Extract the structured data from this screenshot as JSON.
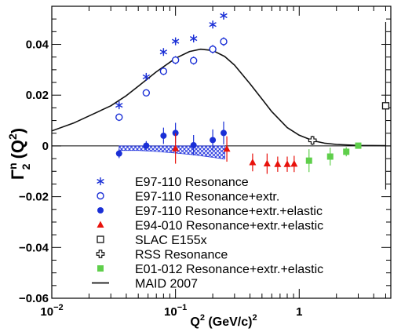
{
  "chart_data": {
    "type": "scatter",
    "xscale": "log",
    "xlim": [
      0.01,
      5.5
    ],
    "ylim": [
      -0.06,
      0.055
    ],
    "xlabel": {
      "main": "Q",
      "sup": "2",
      "rest": " (GeV/c)",
      "sup2": "2"
    },
    "ylabel": {
      "main": "Γ",
      "sup": "n",
      "sub": "2",
      "rest": " (Q",
      "sup2": "2",
      "end": ")"
    },
    "x_ticks": [
      {
        "value": 0.01,
        "label_base": "10",
        "label_exp": "−2"
      },
      {
        "value": 0.1,
        "label_base": "10",
        "label_exp": "−1"
      },
      {
        "value": 1,
        "label_base": "1",
        "label_exp": ""
      }
    ],
    "y_ticks": [
      {
        "value": 0.04,
        "label": "0.04"
      },
      {
        "value": 0.02,
        "label": "0.02"
      },
      {
        "value": 0,
        "label": "0"
      },
      {
        "value": -0.02,
        "label": "−0.02"
      },
      {
        "value": -0.04,
        "label": "−0.04"
      },
      {
        "value": -0.06,
        "label": "−0.06"
      }
    ],
    "series": [
      {
        "name": "E97-110 Resonance",
        "marker": "asterisk",
        "color": "#1a2fd6",
        "points": [
          {
            "x": 0.035,
            "y": 0.016,
            "err": 0.0012
          },
          {
            "x": 0.058,
            "y": 0.0272,
            "err": 0.0012
          },
          {
            "x": 0.08,
            "y": 0.037,
            "err": 0.0014
          },
          {
            "x": 0.1,
            "y": 0.0412,
            "err": 0.0014
          },
          {
            "x": 0.14,
            "y": 0.0423,
            "err": 0.0014
          },
          {
            "x": 0.2,
            "y": 0.0478,
            "err": 0.0015
          },
          {
            "x": 0.245,
            "y": 0.0513,
            "err": 0.0015
          }
        ]
      },
      {
        "name": "E97-110 Resonance+extr.",
        "marker": "open-circle",
        "color": "#1a2fd6",
        "points": [
          {
            "x": 0.035,
            "y": 0.0113,
            "err": 0.0015
          },
          {
            "x": 0.058,
            "y": 0.0209,
            "err": 0.0013
          },
          {
            "x": 0.08,
            "y": 0.0294,
            "err": 0.0015
          },
          {
            "x": 0.1,
            "y": 0.0338,
            "err": 0.0016
          },
          {
            "x": 0.14,
            "y": 0.0336,
            "err": 0.0016
          },
          {
            "x": 0.2,
            "y": 0.0381,
            "err": 0.0017
          },
          {
            "x": 0.245,
            "y": 0.0411,
            "err": 0.0017
          }
        ]
      },
      {
        "name": "E97-110 Resonance+extr.+elastic",
        "marker": "filled-circle",
        "color": "#1a2fd6",
        "points": [
          {
            "x": 0.035,
            "y": -0.003,
            "err": 0.0018
          },
          {
            "x": 0.058,
            "y": 0.0001,
            "err": 0.0018
          },
          {
            "x": 0.08,
            "y": 0.004,
            "err": 0.0032
          },
          {
            "x": 0.1,
            "y": 0.0051,
            "err": 0.004
          },
          {
            "x": 0.14,
            "y": 0.0003,
            "err": 0.004
          },
          {
            "x": 0.2,
            "y": 0.0023,
            "err": 0.0042
          },
          {
            "x": 0.245,
            "y": 0.0051,
            "err": 0.0045
          }
        ]
      },
      {
        "name": "E94-010 Resonance+extr.+elastic",
        "marker": "filled-triangle",
        "color": "#e8120c",
        "points": [
          {
            "x": 0.1,
            "y": -0.001,
            "err": 0.006
          },
          {
            "x": 0.26,
            "y": -0.0012,
            "err": 0.005
          },
          {
            "x": 0.42,
            "y": -0.0065,
            "err": 0.0035
          },
          {
            "x": 0.55,
            "y": -0.007,
            "err": 0.004
          },
          {
            "x": 0.67,
            "y": -0.0072,
            "err": 0.003
          },
          {
            "x": 0.8,
            "y": -0.0072,
            "err": 0.003
          },
          {
            "x": 0.91,
            "y": -0.0071,
            "err": 0.0032
          }
        ]
      },
      {
        "name": "SLAC E155x",
        "marker": "open-square",
        "color": "#111111",
        "points": [
          {
            "x": 5.0,
            "y": 0.0158,
            "err": 0.033
          }
        ]
      },
      {
        "name": "RSS Resonance",
        "marker": "open-cross",
        "color": "#111111",
        "points": [
          {
            "x": 1.28,
            "y": 0.0022,
            "err": 0.0018
          }
        ]
      },
      {
        "name": "E01-012 Resonance+extr.+elastic",
        "marker": "filled-square",
        "color": "#5fcf4b",
        "points": [
          {
            "x": 1.2,
            "y": -0.0058,
            "err": 0.0045
          },
          {
            "x": 1.78,
            "y": -0.0042,
            "err": 0.0035
          },
          {
            "x": 2.4,
            "y": -0.0023,
            "err": 0.0018
          },
          {
            "x": 3.0,
            "y": 0.0001,
            "err": 0.001
          }
        ]
      },
      {
        "name": "MAID 2007",
        "marker": "line",
        "color": "#111111",
        "points": [
          {
            "x": 0.01,
            "y": 0.0059
          },
          {
            "x": 0.015,
            "y": 0.009
          },
          {
            "x": 0.02,
            "y": 0.0118
          },
          {
            "x": 0.03,
            "y": 0.0158
          },
          {
            "x": 0.04,
            "y": 0.0198
          },
          {
            "x": 0.05,
            "y": 0.0235
          },
          {
            "x": 0.07,
            "y": 0.0292
          },
          {
            "x": 0.1,
            "y": 0.0345
          },
          {
            "x": 0.13,
            "y": 0.0372
          },
          {
            "x": 0.16,
            "y": 0.0381
          },
          {
            "x": 0.2,
            "y": 0.0376
          },
          {
            "x": 0.25,
            "y": 0.0352
          },
          {
            "x": 0.3,
            "y": 0.0318
          },
          {
            "x": 0.4,
            "y": 0.0245
          },
          {
            "x": 0.5,
            "y": 0.0185
          },
          {
            "x": 0.6,
            "y": 0.0135
          },
          {
            "x": 0.8,
            "y": 0.0072
          },
          {
            "x": 1.0,
            "y": 0.0042
          },
          {
            "x": 1.3,
            "y": 0.002
          },
          {
            "x": 1.6,
            "y": 0.0011
          },
          {
            "x": 2.0,
            "y": 0.0006
          },
          {
            "x": 3.0,
            "y": 0.0002
          },
          {
            "x": 5.0,
            "y": 0.0001
          }
        ]
      }
    ],
    "hatched_band": {
      "color": "#2d3ee0",
      "upper": [
        {
          "x": 0.035,
          "y": 0.0
        },
        {
          "x": 0.25,
          "y": 0.0
        }
      ],
      "lower": [
        {
          "x": 0.035,
          "y": -0.0018
        },
        {
          "x": 0.05,
          "y": -0.0018
        },
        {
          "x": 0.07,
          "y": -0.0022
        },
        {
          "x": 0.1,
          "y": -0.0028
        },
        {
          "x": 0.14,
          "y": -0.0035
        },
        {
          "x": 0.2,
          "y": -0.0045
        },
        {
          "x": 0.25,
          "y": -0.0052
        }
      ]
    },
    "legend_position": "bottom-left"
  }
}
